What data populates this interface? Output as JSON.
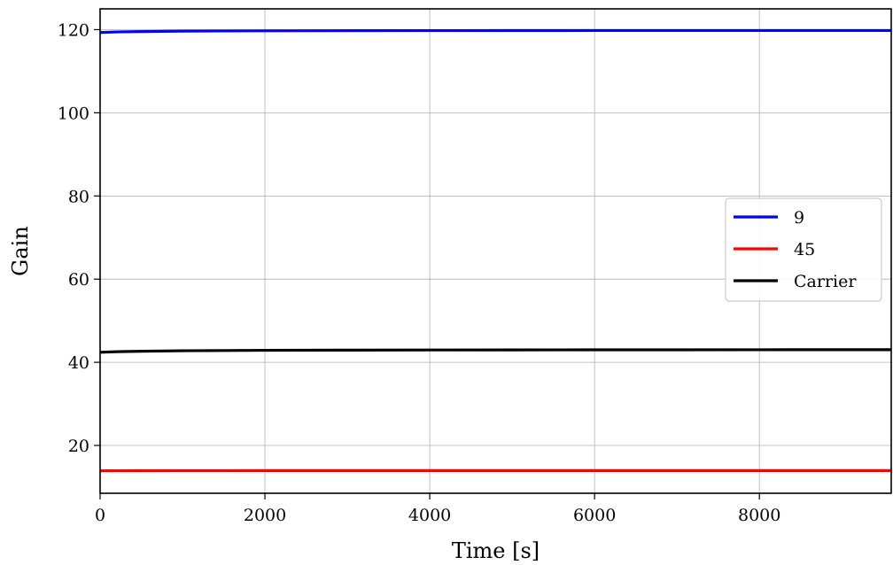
{
  "chart_data": {
    "type": "line",
    "title": "",
    "xlabel": "Time [s]",
    "ylabel": "Gain",
    "xlim": [
      0,
      9600
    ],
    "ylim": [
      8.5,
      125
    ],
    "xticks": [
      0,
      2000,
      4000,
      6000,
      8000
    ],
    "yticks": [
      20,
      40,
      60,
      80,
      100,
      120
    ],
    "grid": true,
    "legend_position": "center-right",
    "series": [
      {
        "name": "9",
        "color": "#0000ff",
        "x": [
          0,
          200,
          500,
          1000,
          2000,
          3000,
          4000,
          5000,
          6000,
          7000,
          8000,
          9000,
          9600
        ],
        "y": [
          119.3,
          119.45,
          119.55,
          119.65,
          119.72,
          119.75,
          119.77,
          119.78,
          119.79,
          119.8,
          119.8,
          119.8,
          119.8
        ]
      },
      {
        "name": "45",
        "color": "#ff0000",
        "x": [
          0,
          200,
          500,
          1000,
          2000,
          3000,
          4000,
          5000,
          6000,
          7000,
          8000,
          9000,
          9600
        ],
        "y": [
          13.9,
          13.92,
          13.93,
          13.94,
          13.95,
          13.95,
          13.95,
          13.95,
          13.95,
          13.95,
          13.95,
          13.95,
          13.95
        ]
      },
      {
        "name": "Carrier",
        "color": "#000000",
        "x": [
          0,
          200,
          500,
          1000,
          2000,
          3000,
          4000,
          5000,
          6000,
          7000,
          8000,
          9000,
          9600
        ],
        "y": [
          42.4,
          42.55,
          42.65,
          42.78,
          42.88,
          42.93,
          42.96,
          42.98,
          43.0,
          43.01,
          43.02,
          43.03,
          43.03
        ]
      }
    ]
  }
}
